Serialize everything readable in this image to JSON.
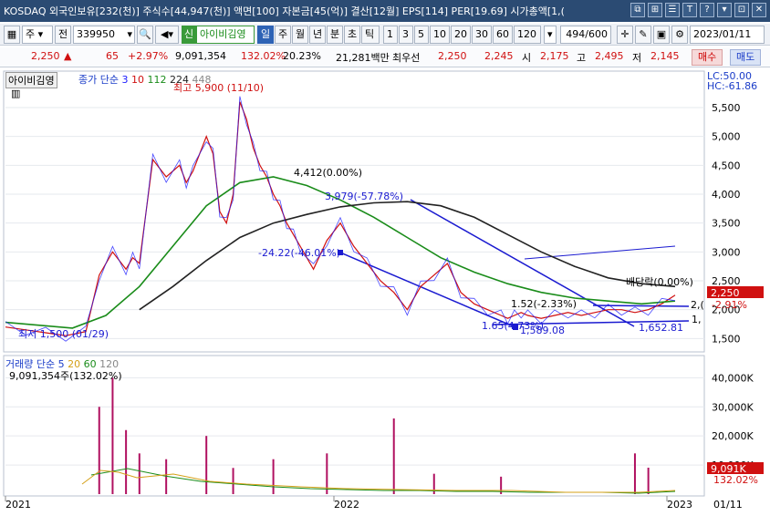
{
  "titlebar": {
    "text": "KOSDAQ 외국인보유[232(천)] 주식수[44,947(천)] 액면[100] 자본금[45(억)] 결산[12월] EPS[114] PER[19.69] 시가총액[1,(",
    "buttons": [
      "⧉",
      "⊞",
      "☰",
      "T",
      "?",
      "▾",
      "⊡",
      "✕"
    ]
  },
  "toolbar": {
    "market": "주",
    "type": "전",
    "code": "339950",
    "badge": "신",
    "stock_name": "아이비김영",
    "periods": [
      "일",
      "주",
      "월",
      "년",
      "분",
      "초",
      "틱"
    ],
    "active_period": "일",
    "numbers": [
      "1",
      "3",
      "5",
      "10",
      "20",
      "30",
      "60",
      "120"
    ],
    "count": "494",
    "count_total": "/600",
    "date": "2023/01/11"
  },
  "quote": {
    "price": "2,250",
    "arrow": "▲",
    "change": "65",
    "change_pct": "+2.97%",
    "volume": "9,091,354",
    "vol_ratio": "132.02%",
    "turnover": "20.23%",
    "amount": "21,281백만",
    "best_label": "최우선",
    "ask": "2,250",
    "bid": "2,245",
    "open_label": "시",
    "open": "2,175",
    "high_label": "고",
    "high": "2,495",
    "low_label": "저",
    "low": "2,145",
    "buy": "매수",
    "sell": "매도"
  },
  "price_panel": {
    "stock_label": "아이비김영",
    "ma_legend": {
      "title": "종가 단순",
      "periods": [
        "3",
        "10",
        "112",
        "224",
        "448"
      ],
      "colors": [
        "#1a1aff",
        "#d01010",
        "#1a8c1a",
        "#222222",
        "#888888"
      ]
    },
    "lc": "LC:50.00",
    "hc": "HC:-61.86",
    "annotations": {
      "high": "최고 5,900 (11/10)",
      "low": "최저 1,500 (01/29)",
      "fib1": "4,412(0.00%)",
      "fib2": "3,979(-57.78%)",
      "fib3": "-24.22(-46.01%)",
      "fib4": "1.52(-2.33%)",
      "fib5": "1.65(4.73%)",
      "fib6": "1,589.08",
      "fib7": "1,652.81",
      "dividend": "배당락(0.00%)",
      "pct_tag": "-2.91%",
      "right_cut1": "2,(",
      "right_cut2": "1,"
    },
    "last_price_tag": "2,250"
  },
  "volume_panel": {
    "legend_title": "거래량",
    "legend_ma": "단순",
    "periods": [
      "5",
      "20",
      "60",
      "120"
    ],
    "colors": [
      "#1a3cc8",
      "#d4a017",
      "#1a8c1a",
      "#888888"
    ],
    "info": "9,091,354주(132.02%)",
    "last_tag": "9,091K",
    "last_pct": "132.02%"
  },
  "x_axis": {
    "labels": [
      "2021",
      "2022",
      "2023"
    ],
    "right_date": "01/11"
  },
  "chart_data": {
    "type": "line",
    "title": "",
    "y_price_ticks": [
      5500,
      5000,
      4500,
      4000,
      3500,
      3000,
      2500,
      2000,
      1500
    ],
    "y_price_range": [
      1300,
      6100
    ],
    "y_volume_ticks": [
      40000,
      30000,
      20000,
      10000
    ],
    "y_volume_range": [
      0,
      47000
    ],
    "x_range": [
      0,
      100
    ],
    "series": [
      {
        "name": "",
        "kind": "close",
        "x": [
          0,
          3,
          6,
          9,
          12,
          14,
          16,
          18,
          19,
          20,
          22,
          24,
          26,
          27,
          28,
          30,
          31,
          32,
          33,
          34,
          35,
          36,
          37,
          38,
          39,
          40,
          41,
          42,
          43,
          44,
          46,
          48,
          50,
          52,
          54,
          56,
          58,
          60,
          62,
          64,
          66,
          68,
          70,
          72,
          74,
          75,
          76,
          77,
          78,
          80,
          82,
          84,
          86,
          88,
          90,
          92,
          94,
          96,
          98,
          100
        ],
        "y": [
          1700,
          1650,
          1600,
          1550,
          1620,
          2600,
          3000,
          2700,
          2900,
          2800,
          4600,
          4300,
          4500,
          4200,
          4400,
          5000,
          4700,
          3700,
          3500,
          4000,
          5600,
          5300,
          4800,
          4500,
          4300,
          4000,
          3800,
          3500,
          3300,
          3100,
          2700,
          3200,
          3500,
          3100,
          2800,
          2500,
          2300,
          2000,
          2400,
          2600,
          2800,
          2300,
          2100,
          2000,
          1900,
          1850,
          1900,
          1950,
          1900,
          1850,
          1900,
          1950,
          1900,
          1950,
          2000,
          2000,
          1950,
          2000,
          2100,
          2250
        ]
      },
      {
        "name": "",
        "kind": "ma112",
        "x": [
          0,
          10,
          15,
          20,
          25,
          30,
          35,
          40,
          45,
          50,
          55,
          60,
          65,
          70,
          75,
          80,
          85,
          90,
          95,
          100
        ],
        "y": [
          1780,
          1680,
          1900,
          2400,
          3100,
          3800,
          4200,
          4300,
          4150,
          3900,
          3600,
          3250,
          2900,
          2650,
          2450,
          2300,
          2200,
          2150,
          2100,
          2150
        ]
      },
      {
        "name": "",
        "kind": "ma224",
        "x": [
          20,
          25,
          30,
          35,
          40,
          45,
          50,
          55,
          60,
          65,
          70,
          75,
          80,
          85,
          90,
          95,
          100
        ],
        "y": [
          2000,
          2400,
          2850,
          3250,
          3500,
          3650,
          3780,
          3850,
          3870,
          3800,
          3600,
          3300,
          3000,
          2750,
          2550,
          2450,
          2400
        ]
      }
    ]
  }
}
